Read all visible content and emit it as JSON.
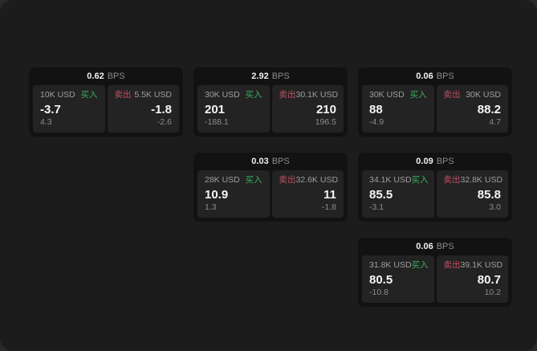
{
  "labels": {
    "bps_unit": "BPS",
    "buy": "买入",
    "sell": "卖出"
  },
  "colors": {
    "outer_bg": "#2a2a2a",
    "window_bg": "#1c1c1c",
    "card_bg": "#121212",
    "panel_bg": "#232323",
    "buy_green": "#3dae5e",
    "sell_red": "#c44f63",
    "label_text": "#9e9e9e",
    "muted_text": "#8c8c8c"
  },
  "cards": [
    {
      "bps": "0.62",
      "buy": {
        "amount": "10K USD",
        "price": "-3.7",
        "delta": "4.3"
      },
      "sell": {
        "amount": "5.5K USD",
        "price": "-1.8",
        "delta": "-2.6"
      }
    },
    {
      "bps": "2.92",
      "buy": {
        "amount": "30K USD",
        "price": "201",
        "delta": "-188.1"
      },
      "sell": {
        "amount": "30.1K USD",
        "price": "210",
        "delta": "196.5"
      }
    },
    {
      "bps": "0.06",
      "buy": {
        "amount": "30K USD",
        "price": "88",
        "delta": "-4.9"
      },
      "sell": {
        "amount": "30K USD",
        "price": "88.2",
        "delta": "4.7"
      }
    },
    {
      "bps": "0.03",
      "buy": {
        "amount": "28K USD",
        "price": "10.9",
        "delta": "1.3"
      },
      "sell": {
        "amount": "32.6K USD",
        "price": "11",
        "delta": "-1.8"
      }
    },
    {
      "bps": "0.09",
      "buy": {
        "amount": "34.1K USD",
        "price": "85.5",
        "delta": "-3.1"
      },
      "sell": {
        "amount": "32.8K USD",
        "price": "85.8",
        "delta": "3.0"
      }
    },
    {
      "bps": "0.06",
      "buy": {
        "amount": "31.8K USD",
        "price": "80.5",
        "delta": "-10.8"
      },
      "sell": {
        "amount": "39.1K USD",
        "price": "80.7",
        "delta": "10.2"
      }
    }
  ]
}
